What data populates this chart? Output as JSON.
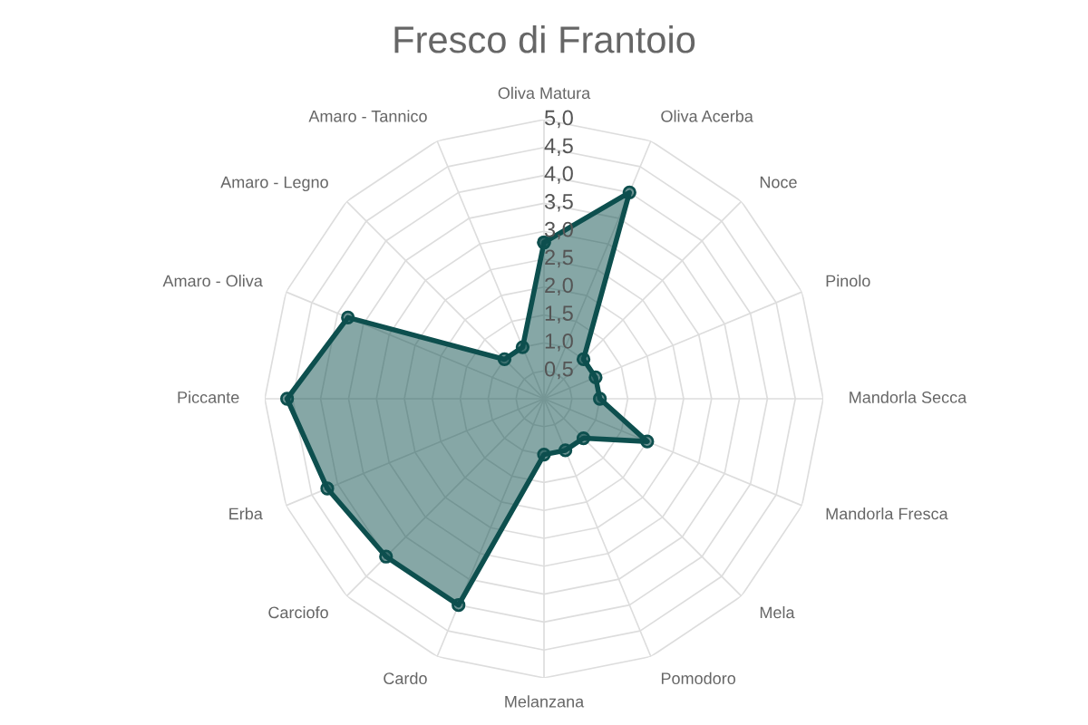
{
  "chart_data": {
    "type": "radar",
    "title": "Fresco di Frantoio",
    "categories": [
      "Oliva Matura",
      "Oliva Acerba",
      "Noce",
      "Pinolo",
      "Mandorla Secca",
      "Mandorla Fresca",
      "Mela",
      "Pomodoro",
      "Melanzana",
      "Cardo",
      "Carciofo",
      "Erba",
      "Piccante",
      "Amaro - Oliva",
      "Amaro - Legno",
      "Amaro - Tannico"
    ],
    "series": [
      {
        "color": "#0d4f4e",
        "values": [
          2.8,
          4.0,
          1.0,
          1.0,
          1.0,
          2.0,
          1.0,
          1.0,
          1.0,
          4.0,
          4.0,
          4.2,
          4.6,
          3.8,
          1.0,
          1.0
        ]
      }
    ],
    "ylim": [
      0,
      5
    ],
    "yticks": [
      {
        "value": 0.5,
        "label": "0,5"
      },
      {
        "value": 1.0,
        "label": "1,0"
      },
      {
        "value": 1.5,
        "label": "1,5"
      },
      {
        "value": 2.0,
        "label": "2,0"
      },
      {
        "value": 2.5,
        "label": "2,5"
      },
      {
        "value": 3.0,
        "label": "3,0"
      },
      {
        "value": 3.5,
        "label": "3,5"
      },
      {
        "value": 4.0,
        "label": "4,0"
      },
      {
        "value": 4.5,
        "label": "4,5"
      },
      {
        "value": 5.0,
        "label": "5,0"
      }
    ],
    "grid": true,
    "marker": "circle"
  }
}
